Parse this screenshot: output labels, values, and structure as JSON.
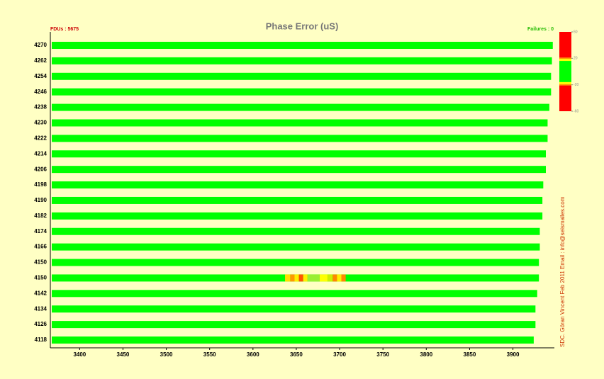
{
  "chart_data": {
    "type": "bar",
    "orientation": "horizontal",
    "title": "Phase Error (uS)",
    "left_note": "FDUs : 5675",
    "right_note": "Failures : 0",
    "side_note": "SDC. Göran Vincent Feb 2011 Email : info@seismalles.com",
    "categories": [
      "4270",
      "4262",
      "4254",
      "4246",
      "4238",
      "4230",
      "4222",
      "4214",
      "4206",
      "4198",
      "4190",
      "4182",
      "4174",
      "4166",
      "4150",
      "4150",
      "4142",
      "4134",
      "4126",
      "4118"
    ],
    "values": [
      3946,
      3945,
      3944,
      3944,
      3942,
      3940,
      3940,
      3938,
      3938,
      3935,
      3934,
      3934,
      3931,
      3931,
      3930,
      3930,
      3928,
      3926,
      3926,
      3924
    ],
    "color": "#00ff00",
    "xlim": [
      3367,
      3947
    ],
    "xticks": [
      3400,
      3450,
      3500,
      3550,
      3600,
      3650,
      3700,
      3750,
      3800,
      3850,
      3900
    ],
    "stripes": [
      {
        "row": 15,
        "start": 3637,
        "end": 3643,
        "color": "#ffdd00"
      },
      {
        "row": 15,
        "start": 3643,
        "end": 3648,
        "color": "#ff9900"
      },
      {
        "row": 15,
        "start": 3648,
        "end": 3653,
        "color": "#ffee00"
      },
      {
        "row": 15,
        "start": 3653,
        "end": 3658,
        "color": "#ff5500"
      },
      {
        "row": 15,
        "start": 3658,
        "end": 3663,
        "color": "#ffee00"
      },
      {
        "row": 15,
        "start": 3663,
        "end": 3677,
        "color": "#99ee33"
      },
      {
        "row": 15,
        "start": 3677,
        "end": 3686,
        "color": "#ffff00"
      },
      {
        "row": 15,
        "start": 3686,
        "end": 3692,
        "color": "#ccee00"
      },
      {
        "row": 15,
        "start": 3692,
        "end": 3697,
        "color": "#ff8800"
      },
      {
        "row": 15,
        "start": 3697,
        "end": 3702,
        "color": "#ffee00"
      },
      {
        "row": 15,
        "start": 3702,
        "end": 3707,
        "color": "#ff8800"
      }
    ],
    "colorbar": {
      "ylim": [
        -60,
        60
      ],
      "yticks": [
        -60,
        -20,
        20,
        60
      ],
      "bands": [
        {
          "from": 21,
          "to": 60,
          "color": "#ff0000"
        },
        {
          "from": 19,
          "to": 21,
          "color": "#ff9900"
        },
        {
          "from": 16,
          "to": 19,
          "color": "#ffff00"
        },
        {
          "from": -16,
          "to": 16,
          "color": "#00ff00"
        },
        {
          "from": -19,
          "to": -16,
          "color": "#ffff00"
        },
        {
          "from": -21,
          "to": -19,
          "color": "#ff9900"
        },
        {
          "from": -60,
          "to": -21,
          "color": "#ff0000"
        }
      ]
    }
  }
}
